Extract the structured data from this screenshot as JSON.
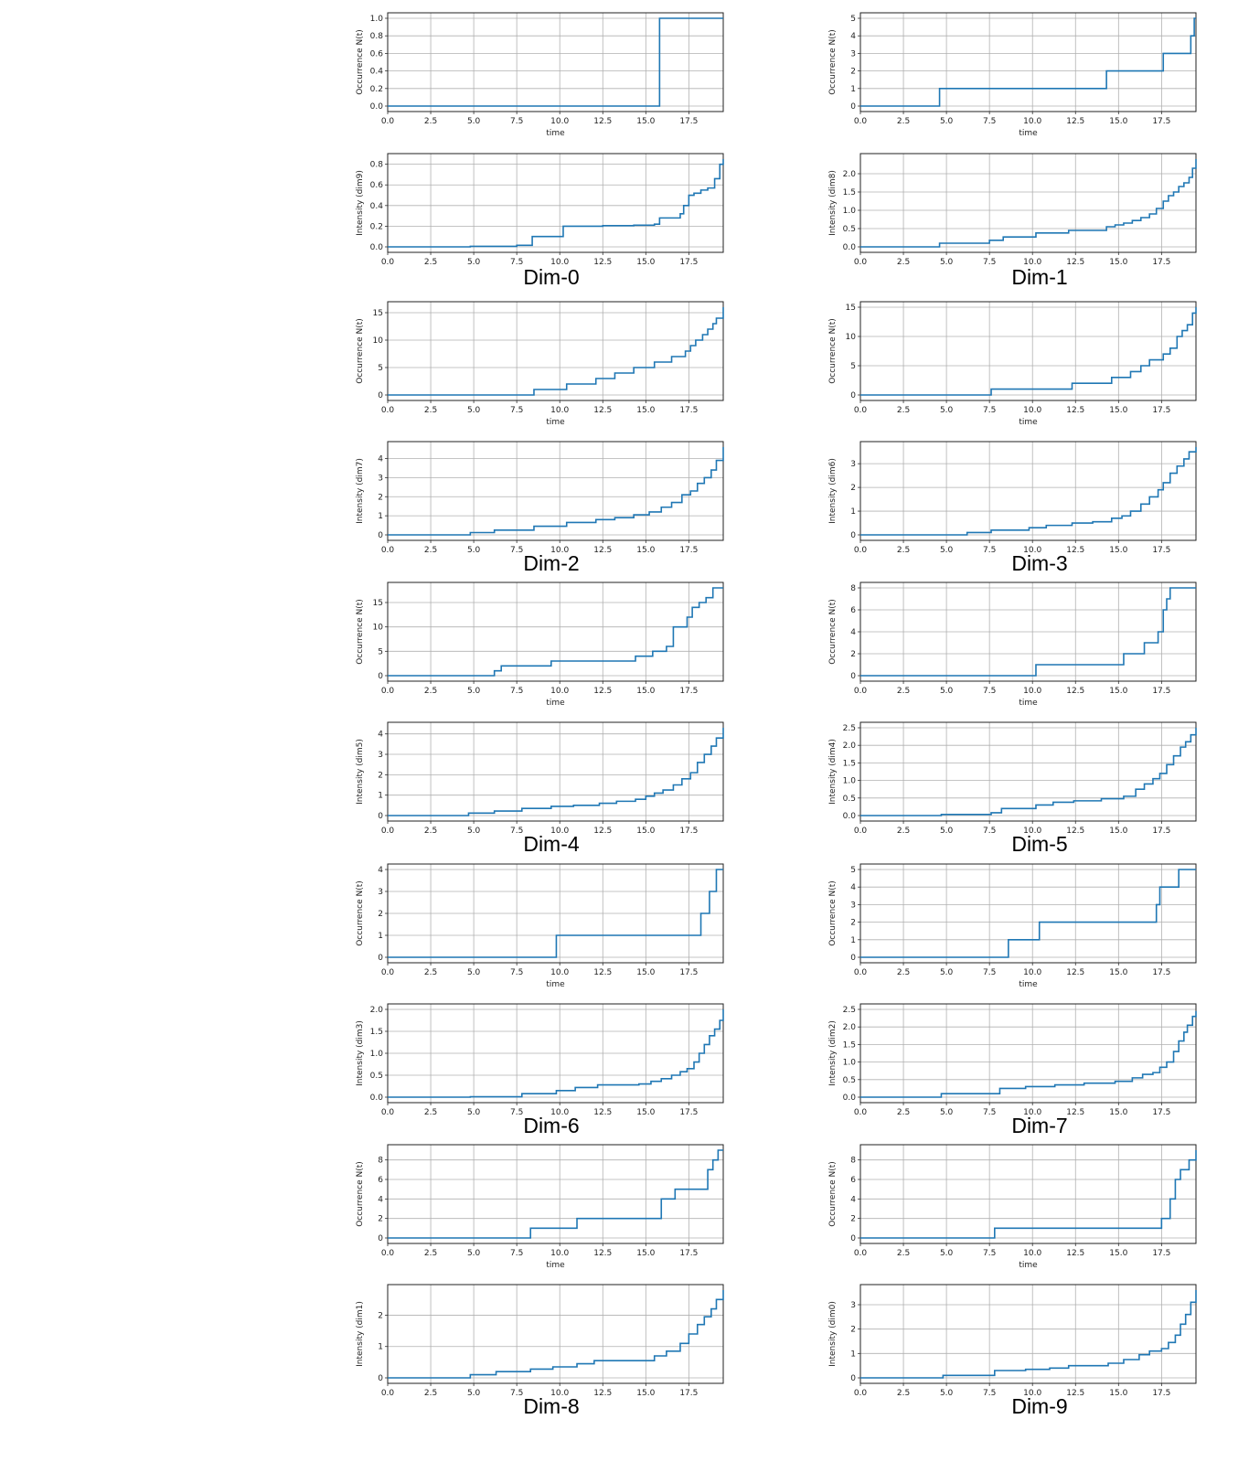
{
  "figure": {
    "series_color": "#1f77b4",
    "grid": true,
    "dim_labels": [
      "Dim-0",
      "Dim-1",
      "Dim-2",
      "Dim-3",
      "Dim-4",
      "Dim-5",
      "Dim-6",
      "Dim-7",
      "Dim-8",
      "Dim-9"
    ]
  },
  "chart_data": [
    {
      "id": "dim0-occ",
      "type": "line",
      "step": true,
      "xlabel": "time",
      "ylabel": "Occurrence N(t)",
      "xlim": [
        0,
        19.5
      ],
      "ylim": [
        0,
        1
      ],
      "xticks": [
        "0.0",
        "2.5",
        "5.0",
        "7.5",
        "10.0",
        "12.5",
        "15.0",
        "17.5"
      ],
      "yticks": [
        "0.0",
        "0.2",
        "0.4",
        "0.6",
        "0.8",
        "1.0"
      ],
      "x": [
        0,
        15.8,
        19.5
      ],
      "y": [
        0,
        1,
        1
      ]
    },
    {
      "id": "dim0-int",
      "type": "line",
      "step": true,
      "xlabel": "",
      "ylabel": "Intensity (dim9)",
      "xlim": [
        0,
        19.5
      ],
      "ylim": [
        0,
        0.85
      ],
      "xticks": [
        "0.0",
        "2.5",
        "5.0",
        "7.5",
        "10.0",
        "12.5",
        "15.0",
        "17.5"
      ],
      "yticks": [
        "0.0",
        "0.2",
        "0.4",
        "0.6",
        "0.8"
      ],
      "x": [
        0,
        4.8,
        7.5,
        8.4,
        10.2,
        12.5,
        14.3,
        15.5,
        15.8,
        17,
        17.2,
        17.5,
        17.8,
        18.2,
        18.6,
        19,
        19.3,
        19.5
      ],
      "y": [
        0,
        0.005,
        0.015,
        0.1,
        0.2,
        0.205,
        0.21,
        0.22,
        0.28,
        0.32,
        0.4,
        0.5,
        0.52,
        0.55,
        0.57,
        0.66,
        0.8,
        0.85
      ]
    },
    {
      "id": "dim1-occ",
      "type": "line",
      "step": true,
      "xlabel": "time",
      "ylabel": "Occurrence N(t)",
      "xlim": [
        0,
        19.5
      ],
      "ylim": [
        0,
        5
      ],
      "xticks": [
        "0.0",
        "2.5",
        "5.0",
        "7.5",
        "10.0",
        "12.5",
        "15.0",
        "17.5"
      ],
      "yticks": [
        "0",
        "1",
        "2",
        "3",
        "4",
        "5"
      ],
      "x": [
        0,
        4.6,
        14.3,
        17.6,
        19.2,
        19.4,
        19.5
      ],
      "y": [
        0,
        1,
        2,
        3,
        4,
        5,
        5
      ]
    },
    {
      "id": "dim1-int",
      "type": "line",
      "step": true,
      "xlabel": "",
      "ylabel": "Intensity (dim8)",
      "xlim": [
        0,
        19.5
      ],
      "ylim": [
        0,
        2.4
      ],
      "xticks": [
        "0.0",
        "2.5",
        "5.0",
        "7.5",
        "10.0",
        "12.5",
        "15.0",
        "17.5"
      ],
      "yticks": [
        "0.0",
        "0.5",
        "1.0",
        "1.5",
        "2.0"
      ],
      "x": [
        0,
        4.6,
        7.5,
        8.3,
        10.2,
        12.1,
        14.3,
        14.8,
        15.3,
        15.8,
        16.3,
        16.8,
        17.2,
        17.6,
        17.9,
        18.2,
        18.5,
        18.8,
        19.1,
        19.3,
        19.5
      ],
      "y": [
        0,
        0.1,
        0.18,
        0.27,
        0.38,
        0.45,
        0.55,
        0.6,
        0.65,
        0.72,
        0.8,
        0.9,
        1.05,
        1.25,
        1.4,
        1.5,
        1.65,
        1.75,
        1.9,
        2.15,
        2.4
      ]
    },
    {
      "id": "dim2-occ",
      "type": "line",
      "step": true,
      "xlabel": "time",
      "ylabel": "Occurrence N(t)",
      "xlim": [
        0,
        19.5
      ],
      "ylim": [
        0,
        16
      ],
      "xticks": [
        "0.0",
        "2.5",
        "5.0",
        "7.5",
        "10.0",
        "12.5",
        "15.0",
        "17.5"
      ],
      "yticks": [
        "0",
        "5",
        "10",
        "15"
      ],
      "x": [
        0,
        8.5,
        10.4,
        12.1,
        13.2,
        14.3,
        15.5,
        16.5,
        17.3,
        17.6,
        17.9,
        18.3,
        18.6,
        18.9,
        19.1,
        19.5
      ],
      "y": [
        0,
        1,
        2,
        3,
        4,
        5,
        6,
        7,
        8,
        9,
        10,
        11,
        12,
        13,
        14,
        16
      ]
    },
    {
      "id": "dim2-int",
      "type": "line",
      "step": true,
      "xlabel": "",
      "ylabel": "Intensity (dim7)",
      "xlim": [
        0,
        19.5
      ],
      "ylim": [
        0,
        4.6
      ],
      "xticks": [
        "0.0",
        "2.5",
        "5.0",
        "7.5",
        "10.0",
        "12.5",
        "15.0",
        "17.5"
      ],
      "yticks": [
        "0",
        "1",
        "2",
        "3",
        "4"
      ],
      "x": [
        0,
        4.8,
        6.2,
        8.5,
        10.4,
        12.1,
        13.2,
        14.3,
        15.2,
        15.9,
        16.5,
        17.1,
        17.6,
        18,
        18.4,
        18.8,
        19.1,
        19.5
      ],
      "y": [
        0,
        0.12,
        0.25,
        0.45,
        0.65,
        0.8,
        0.9,
        1.05,
        1.2,
        1.45,
        1.7,
        2.1,
        2.3,
        2.7,
        3,
        3.4,
        3.9,
        4.6
      ]
    },
    {
      "id": "dim3-occ",
      "type": "line",
      "step": true,
      "xlabel": "time",
      "ylabel": "Occurrence N(t)",
      "xlim": [
        0,
        19.5
      ],
      "ylim": [
        0,
        15
      ],
      "xticks": [
        "0.0",
        "2.5",
        "5.0",
        "7.5",
        "10.0",
        "12.5",
        "15.0",
        "17.5"
      ],
      "yticks": [
        "0",
        "5",
        "10",
        "15"
      ],
      "x": [
        0,
        7.6,
        12.3,
        14.6,
        15.7,
        16.3,
        16.8,
        17.6,
        18,
        18.4,
        18.7,
        19,
        19.3,
        19.5
      ],
      "y": [
        0,
        1,
        2,
        3,
        4,
        5,
        6,
        7,
        8,
        10,
        11,
        12,
        14,
        15
      ]
    },
    {
      "id": "dim3-int",
      "type": "line",
      "step": true,
      "xlabel": "",
      "ylabel": "Intensity (dim6)",
      "xlim": [
        0,
        19.5
      ],
      "ylim": [
        0,
        3.7
      ],
      "xticks": [
        "0.0",
        "2.5",
        "5.0",
        "7.5",
        "10.0",
        "12.5",
        "15.0",
        "17.5"
      ],
      "yticks": [
        "0",
        "1",
        "2",
        "3"
      ],
      "x": [
        0,
        6.2,
        7.6,
        9.8,
        10.8,
        12.3,
        13.5,
        14.6,
        15.2,
        15.7,
        16.3,
        16.8,
        17.3,
        17.6,
        18,
        18.4,
        18.8,
        19.1,
        19.5
      ],
      "y": [
        0,
        0.1,
        0.2,
        0.3,
        0.4,
        0.5,
        0.55,
        0.7,
        0.8,
        1,
        1.3,
        1.6,
        1.9,
        2.2,
        2.6,
        2.9,
        3.2,
        3.5,
        3.7
      ]
    },
    {
      "id": "dim4-occ",
      "type": "line",
      "step": true,
      "xlabel": "time",
      "ylabel": "Occurrence N(t)",
      "xlim": [
        0,
        19.5
      ],
      "ylim": [
        0,
        18
      ],
      "xticks": [
        "0.0",
        "2.5",
        "5.0",
        "7.5",
        "10.0",
        "12.5",
        "15.0",
        "17.5"
      ],
      "yticks": [
        "0",
        "5",
        "10",
        "15"
      ],
      "x": [
        0,
        6.2,
        6.6,
        9.5,
        14.4,
        15.4,
        16.2,
        16.6,
        17.4,
        17.7,
        18.1,
        18.5,
        18.9,
        19.5
      ],
      "y": [
        0,
        1,
        2,
        3,
        4,
        5,
        6,
        10,
        12,
        14,
        15,
        16,
        18,
        18
      ]
    },
    {
      "id": "dim4-int",
      "type": "line",
      "step": true,
      "xlabel": "",
      "ylabel": "Intensity (dim5)",
      "xlim": [
        0,
        19.5
      ],
      "ylim": [
        0,
        4.3
      ],
      "xticks": [
        "0.0",
        "2.5",
        "5.0",
        "7.5",
        "10.0",
        "12.5",
        "15.0",
        "17.5"
      ],
      "yticks": [
        "0",
        "1",
        "2",
        "3",
        "4"
      ],
      "x": [
        0,
        4.7,
        6.2,
        7.8,
        9.5,
        10.8,
        12.3,
        13.3,
        14.4,
        15,
        15.5,
        16,
        16.6,
        17.1,
        17.6,
        18,
        18.4,
        18.8,
        19.1,
        19.5
      ],
      "y": [
        0,
        0.12,
        0.22,
        0.35,
        0.45,
        0.5,
        0.6,
        0.7,
        0.8,
        0.95,
        1.1,
        1.25,
        1.5,
        1.8,
        2.1,
        2.6,
        3,
        3.4,
        3.8,
        4.3
      ]
    },
    {
      "id": "dim5-occ",
      "type": "line",
      "step": true,
      "xlabel": "time",
      "ylabel": "Occurrence N(t)",
      "xlim": [
        0,
        19.5
      ],
      "ylim": [
        0,
        8
      ],
      "xticks": [
        "0.0",
        "2.5",
        "5.0",
        "7.5",
        "10.0",
        "12.5",
        "15.0",
        "17.5"
      ],
      "yticks": [
        "0",
        "2",
        "4",
        "6",
        "8"
      ],
      "x": [
        0,
        10.2,
        15.3,
        16.5,
        17.3,
        17.6,
        17.8,
        18,
        19.5
      ],
      "y": [
        0,
        1,
        2,
        3,
        4,
        6,
        7,
        8,
        8
      ]
    },
    {
      "id": "dim5-int",
      "type": "line",
      "step": true,
      "xlabel": "",
      "ylabel": "Intensity (dim4)",
      "xlim": [
        0,
        19.5
      ],
      "ylim": [
        0,
        2.5
      ],
      "xticks": [
        "0.0",
        "2.5",
        "5.0",
        "7.5",
        "10.0",
        "12.5",
        "15.0",
        "17.5"
      ],
      "yticks": [
        "0.0",
        "0.5",
        "1.0",
        "1.5",
        "2.0",
        "2.5"
      ],
      "x": [
        0,
        4.7,
        7.6,
        8.2,
        10.2,
        11.2,
        12.4,
        14,
        15.3,
        16,
        16.5,
        17,
        17.4,
        17.8,
        18.2,
        18.6,
        18.9,
        19.2,
        19.5
      ],
      "y": [
        0,
        0.03,
        0.08,
        0.2,
        0.3,
        0.38,
        0.42,
        0.48,
        0.55,
        0.75,
        0.9,
        1.05,
        1.2,
        1.45,
        1.7,
        1.95,
        2.1,
        2.3,
        2.5
      ]
    },
    {
      "id": "dim6-occ",
      "type": "line",
      "step": true,
      "xlabel": "time",
      "ylabel": "Occurrence N(t)",
      "xlim": [
        0,
        19.5
      ],
      "ylim": [
        0,
        4
      ],
      "xticks": [
        "0.0",
        "2.5",
        "5.0",
        "7.5",
        "10.0",
        "12.5",
        "15.0",
        "17.5"
      ],
      "yticks": [
        "0",
        "1",
        "2",
        "3",
        "4"
      ],
      "x": [
        0,
        9.8,
        18.2,
        18.7,
        19.1,
        19.5
      ],
      "y": [
        0,
        1,
        2,
        3,
        4,
        4
      ]
    },
    {
      "id": "dim6-int",
      "type": "line",
      "step": true,
      "xlabel": "",
      "ylabel": "Intensity (dim3)",
      "xlim": [
        0,
        19.5
      ],
      "ylim": [
        0,
        2
      ],
      "xticks": [
        "0.0",
        "2.5",
        "5.0",
        "7.5",
        "10.0",
        "12.5",
        "15.0",
        "17.5"
      ],
      "yticks": [
        "0.0",
        "0.5",
        "1.0",
        "1.5",
        "2.0"
      ],
      "x": [
        0,
        4.8,
        7.8,
        9.8,
        10.9,
        12.2,
        14.6,
        15.3,
        15.9,
        16.5,
        17,
        17.4,
        17.8,
        18.1,
        18.4,
        18.7,
        19,
        19.3,
        19.5
      ],
      "y": [
        0,
        0.01,
        0.08,
        0.15,
        0.22,
        0.28,
        0.3,
        0.36,
        0.42,
        0.5,
        0.58,
        0.65,
        0.8,
        1,
        1.2,
        1.4,
        1.55,
        1.75,
        2
      ]
    },
    {
      "id": "dim7-occ",
      "type": "line",
      "step": true,
      "xlabel": "time",
      "ylabel": "Occurrence N(t)",
      "xlim": [
        0,
        19.5
      ],
      "ylim": [
        0,
        5
      ],
      "xticks": [
        "0.0",
        "2.5",
        "5.0",
        "7.5",
        "10.0",
        "12.5",
        "15.0",
        "17.5"
      ],
      "yticks": [
        "0",
        "1",
        "2",
        "3",
        "4",
        "5"
      ],
      "x": [
        0,
        8.6,
        10.4,
        17.2,
        17.4,
        18.5,
        19.5
      ],
      "y": [
        0,
        1,
        2,
        3,
        4,
        5,
        5
      ]
    },
    {
      "id": "dim7-int",
      "type": "line",
      "step": true,
      "xlabel": "",
      "ylabel": "Intensity (dim2)",
      "xlim": [
        0,
        19.5
      ],
      "ylim": [
        0,
        2.5
      ],
      "xticks": [
        "0.0",
        "2.5",
        "5.0",
        "7.5",
        "10.0",
        "12.5",
        "15.0",
        "17.5"
      ],
      "yticks": [
        "0.0",
        "0.5",
        "1.0",
        "1.5",
        "2.0",
        "2.5"
      ],
      "x": [
        0,
        4.7,
        8.1,
        9.6,
        11.3,
        13,
        14.8,
        15.8,
        16.4,
        17,
        17.4,
        17.8,
        18.2,
        18.5,
        18.8,
        19,
        19.3,
        19.5
      ],
      "y": [
        0,
        0.1,
        0.25,
        0.3,
        0.35,
        0.4,
        0.45,
        0.55,
        0.65,
        0.7,
        0.85,
        1,
        1.3,
        1.6,
        1.85,
        2.05,
        2.3,
        2.45
      ]
    },
    {
      "id": "dim8-occ",
      "type": "line",
      "step": true,
      "xlabel": "time",
      "ylabel": "Occurrence N(t)",
      "xlim": [
        0,
        19.5
      ],
      "ylim": [
        0,
        9
      ],
      "xticks": [
        "0.0",
        "2.5",
        "5.0",
        "7.5",
        "10.0",
        "12.5",
        "15.0",
        "17.5"
      ],
      "yticks": [
        "0",
        "2",
        "4",
        "6",
        "8"
      ],
      "x": [
        0,
        8.3,
        11,
        15.9,
        16.7,
        18.6,
        18.9,
        19.2,
        19.5
      ],
      "y": [
        0,
        1,
        2,
        4,
        5,
        7,
        8,
        9,
        9
      ]
    },
    {
      "id": "dim8-int",
      "type": "line",
      "step": true,
      "xlabel": "",
      "ylabel": "Intensity (dim1)",
      "xlim": [
        0,
        19.5
      ],
      "ylim": [
        0,
        2.8
      ],
      "xticks": [
        "0.0",
        "2.5",
        "5.0",
        "7.5",
        "10.0",
        "12.5",
        "15.0",
        "17.5"
      ],
      "yticks": [
        "0",
        "1",
        "2"
      ],
      "x": [
        0,
        4.8,
        6.3,
        8.3,
        9.6,
        11,
        12,
        14.5,
        15.5,
        16.2,
        17,
        17.5,
        18,
        18.4,
        18.8,
        19.1,
        19.5
      ],
      "y": [
        0,
        0.1,
        0.2,
        0.28,
        0.35,
        0.45,
        0.55,
        0.55,
        0.7,
        0.85,
        1.1,
        1.4,
        1.7,
        1.95,
        2.2,
        2.5,
        2.8
      ]
    },
    {
      "id": "dim9-occ",
      "type": "line",
      "step": true,
      "xlabel": "time",
      "ylabel": "Occurrence N(t)",
      "xlim": [
        0,
        19.5
      ],
      "ylim": [
        0,
        9
      ],
      "xticks": [
        "0.0",
        "2.5",
        "5.0",
        "7.5",
        "10.0",
        "12.5",
        "15.0",
        "17.5"
      ],
      "yticks": [
        "0",
        "2",
        "4",
        "6",
        "8"
      ],
      "x": [
        0,
        7.8,
        17.5,
        18,
        18.3,
        18.6,
        19.1,
        19.5
      ],
      "y": [
        0,
        1,
        2,
        4,
        6,
        7,
        8,
        9
      ]
    },
    {
      "id": "dim9-int",
      "type": "line",
      "step": true,
      "xlabel": "",
      "ylabel": "Intensity (dim0)",
      "xlim": [
        0,
        19.5
      ],
      "ylim": [
        0,
        3.6
      ],
      "xticks": [
        "0.0",
        "2.5",
        "5.0",
        "7.5",
        "10.0",
        "12.5",
        "15.0",
        "17.5"
      ],
      "yticks": [
        "0",
        "1",
        "2",
        "3"
      ],
      "x": [
        0,
        4.8,
        7.8,
        9.6,
        11,
        12.1,
        14.4,
        15.3,
        16.2,
        16.8,
        17.5,
        17.9,
        18.3,
        18.6,
        18.9,
        19.2,
        19.5
      ],
      "y": [
        0,
        0.1,
        0.3,
        0.35,
        0.4,
        0.5,
        0.6,
        0.75,
        0.95,
        1.1,
        1.2,
        1.45,
        1.75,
        2.2,
        2.6,
        3.1,
        3.6
      ]
    }
  ]
}
